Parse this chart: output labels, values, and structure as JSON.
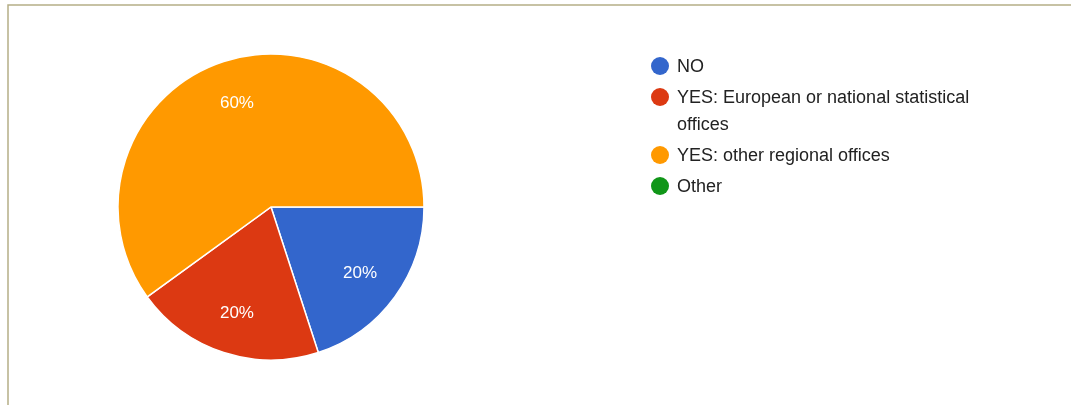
{
  "chart_data": {
    "type": "pie",
    "categories": [
      "NO",
      "YES: European or national statistical offices",
      "YES: other regional offices",
      "Other"
    ],
    "values": [
      20,
      20,
      60,
      0
    ],
    "colors": [
      "#3366cc",
      "#dc3912",
      "#ff9900",
      "#109618"
    ],
    "value_labels": [
      "20%",
      "20%",
      "60%",
      null
    ],
    "legend": "right"
  }
}
